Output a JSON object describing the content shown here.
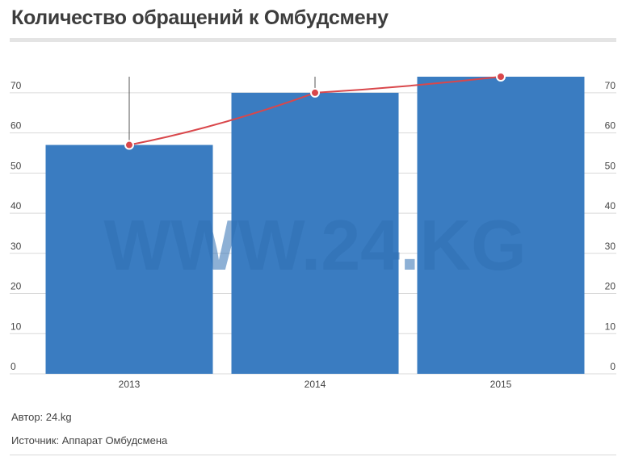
{
  "title": "Количество обращений к Омбудсмену",
  "watermark": "WWW.24.KG",
  "footer": {
    "author": "Автор: 24.kg",
    "source": "Источник: Аппарат Омбудсмена"
  },
  "colors": {
    "bar": "#3a7cc1",
    "line": "#d9474b",
    "grid": "#d9d9d9",
    "tick_text": "#444444",
    "watermark": "#2f6fb3"
  },
  "chart_data": {
    "type": "bar",
    "categories": [
      "2013",
      "2014",
      "2015"
    ],
    "series": [
      {
        "type": "bar",
        "values": [
          57,
          70,
          74
        ]
      },
      {
        "type": "line",
        "values": [
          57,
          70,
          74
        ]
      }
    ],
    "ylim": [
      0,
      74
    ],
    "yticks": [
      0,
      10,
      20,
      30,
      40,
      50,
      60,
      70
    ],
    "secondary_yticks": [
      0,
      10,
      20,
      30,
      40,
      50,
      60,
      70
    ],
    "grid": true,
    "legend": "none"
  }
}
